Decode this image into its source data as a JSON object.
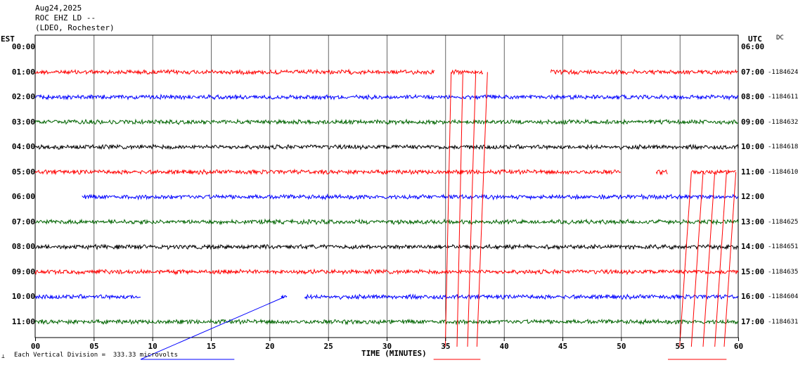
{
  "header": {
    "date": "Aug24,2025",
    "station": "ROC EHZ LD --",
    "network": "(LDEO, Rochester)"
  },
  "left_axis_title": "EST",
  "right_axis_title": "UTC",
  "dc_label": "DC",
  "footer": {
    "mark": "⟂",
    "scale_text": "Each Vertical Division =  333.33 microvolts"
  },
  "chart_data": {
    "type": "line",
    "title": "ROC EHZ LD --",
    "xlabel": "TIME (MINUTES)",
    "x_range": [
      0,
      60
    ],
    "x_ticks": [
      "00",
      "05",
      "10",
      "15",
      "20",
      "25",
      "30",
      "35",
      "40",
      "45",
      "50",
      "55",
      "60"
    ],
    "grid": true,
    "rows": [
      {
        "est": "00:00",
        "utc": "06:00",
        "dc": "",
        "color": "#000000",
        "segments": []
      },
      {
        "est": "01:00",
        "utc": "07:00",
        "dc": "-1184624",
        "color": "#ff0000",
        "segments": [
          [
            0,
            34.1
          ],
          [
            35.5,
            37.5
          ],
          [
            37.5,
            37.9
          ],
          [
            37.9,
            38.2
          ],
          [
            44.0,
            60
          ]
        ]
      },
      {
        "est": "02:00",
        "utc": "08:00",
        "dc": "-1184611",
        "color": "#0000ff",
        "segments": [
          [
            0,
            60
          ]
        ]
      },
      {
        "est": "03:00",
        "utc": "09:00",
        "dc": "-1184632",
        "color": "#006400",
        "segments": [
          [
            0,
            60
          ]
        ]
      },
      {
        "est": "04:00",
        "utc": "10:00",
        "dc": "-1184618",
        "color": "#000000",
        "segments": [
          [
            0,
            60
          ]
        ]
      },
      {
        "est": "05:00",
        "utc": "11:00",
        "dc": "-1184610",
        "color": "#ff0000",
        "segments": [
          [
            0,
            50.0
          ],
          [
            53.0,
            54.0
          ],
          [
            56.0,
            57.2
          ],
          [
            57.2,
            58.3
          ],
          [
            58.3,
            59.3
          ],
          [
            59.3,
            59.8
          ]
        ]
      },
      {
        "est": "06:00",
        "utc": "12:00",
        "dc": "",
        "color": "#0000ff",
        "segments": [
          [
            4.0,
            60
          ]
        ]
      },
      {
        "est": "07:00",
        "utc": "13:00",
        "dc": "-1184625",
        "color": "#006400",
        "segments": [
          [
            0,
            60
          ]
        ]
      },
      {
        "est": "08:00",
        "utc": "14:00",
        "dc": "-1184651",
        "color": "#000000",
        "segments": [
          [
            0,
            60
          ]
        ]
      },
      {
        "est": "09:00",
        "utc": "15:00",
        "dc": "-1184635",
        "color": "#ff0000",
        "segments": [
          [
            0,
            60
          ]
        ]
      },
      {
        "est": "10:00",
        "utc": "16:00",
        "dc": "-1184604",
        "color": "#0000ff",
        "segments": [
          [
            0,
            9.0
          ],
          [
            21.0,
            21.5
          ],
          [
            23.0,
            60
          ]
        ]
      },
      {
        "est": "11:00",
        "utc": "17:00",
        "dc": "-1184631",
        "color": "#006400",
        "segments": [
          [
            0,
            60
          ]
        ]
      }
    ],
    "glitch_lines": [
      {
        "color": "#ff0000",
        "from": {
          "row": 1,
          "minute": 35.5
        },
        "to": {
          "row": 12,
          "minute": 35.0
        }
      },
      {
        "color": "#ff0000",
        "from": {
          "row": 1,
          "minute": 36.5
        },
        "to": {
          "row": 12,
          "minute": 36.0
        }
      },
      {
        "color": "#ff0000",
        "from": {
          "row": 1,
          "minute": 37.6
        },
        "to": {
          "row": 12,
          "minute": 36.9
        }
      },
      {
        "color": "#ff0000",
        "from": {
          "row": 1,
          "minute": 38.6
        },
        "to": {
          "row": 12,
          "minute": 37.7
        }
      },
      {
        "color": "#ff0000",
        "from": {
          "row": 5,
          "minute": 56.0
        },
        "to": {
          "row": 12,
          "minute": 55.0
        }
      },
      {
        "color": "#ff0000",
        "from": {
          "row": 5,
          "minute": 57.0
        },
        "to": {
          "row": 12,
          "minute": 56.0
        }
      },
      {
        "color": "#ff0000",
        "from": {
          "row": 5,
          "minute": 58.0
        },
        "to": {
          "row": 12,
          "minute": 57.0
        }
      },
      {
        "color": "#ff0000",
        "from": {
          "row": 5,
          "minute": 59.0
        },
        "to": {
          "row": 12,
          "minute": 58.0
        }
      },
      {
        "color": "#ff0000",
        "from": {
          "row": 5,
          "minute": 59.8
        },
        "to": {
          "row": 12,
          "minute": 58.8
        }
      },
      {
        "color": "#0000ff",
        "from": {
          "row": 10,
          "minute": 21.3
        },
        "to": {
          "row": 13,
          "minute": 9.0
        }
      }
    ],
    "footer_segments": [
      {
        "color": "#0000ff",
        "from": 9.0,
        "to": 17.0
      },
      {
        "color": "#ff0000",
        "from": 34.0,
        "to": 38.0
      },
      {
        "color": "#ff0000",
        "from": 54.0,
        "to": 59.0
      }
    ]
  }
}
